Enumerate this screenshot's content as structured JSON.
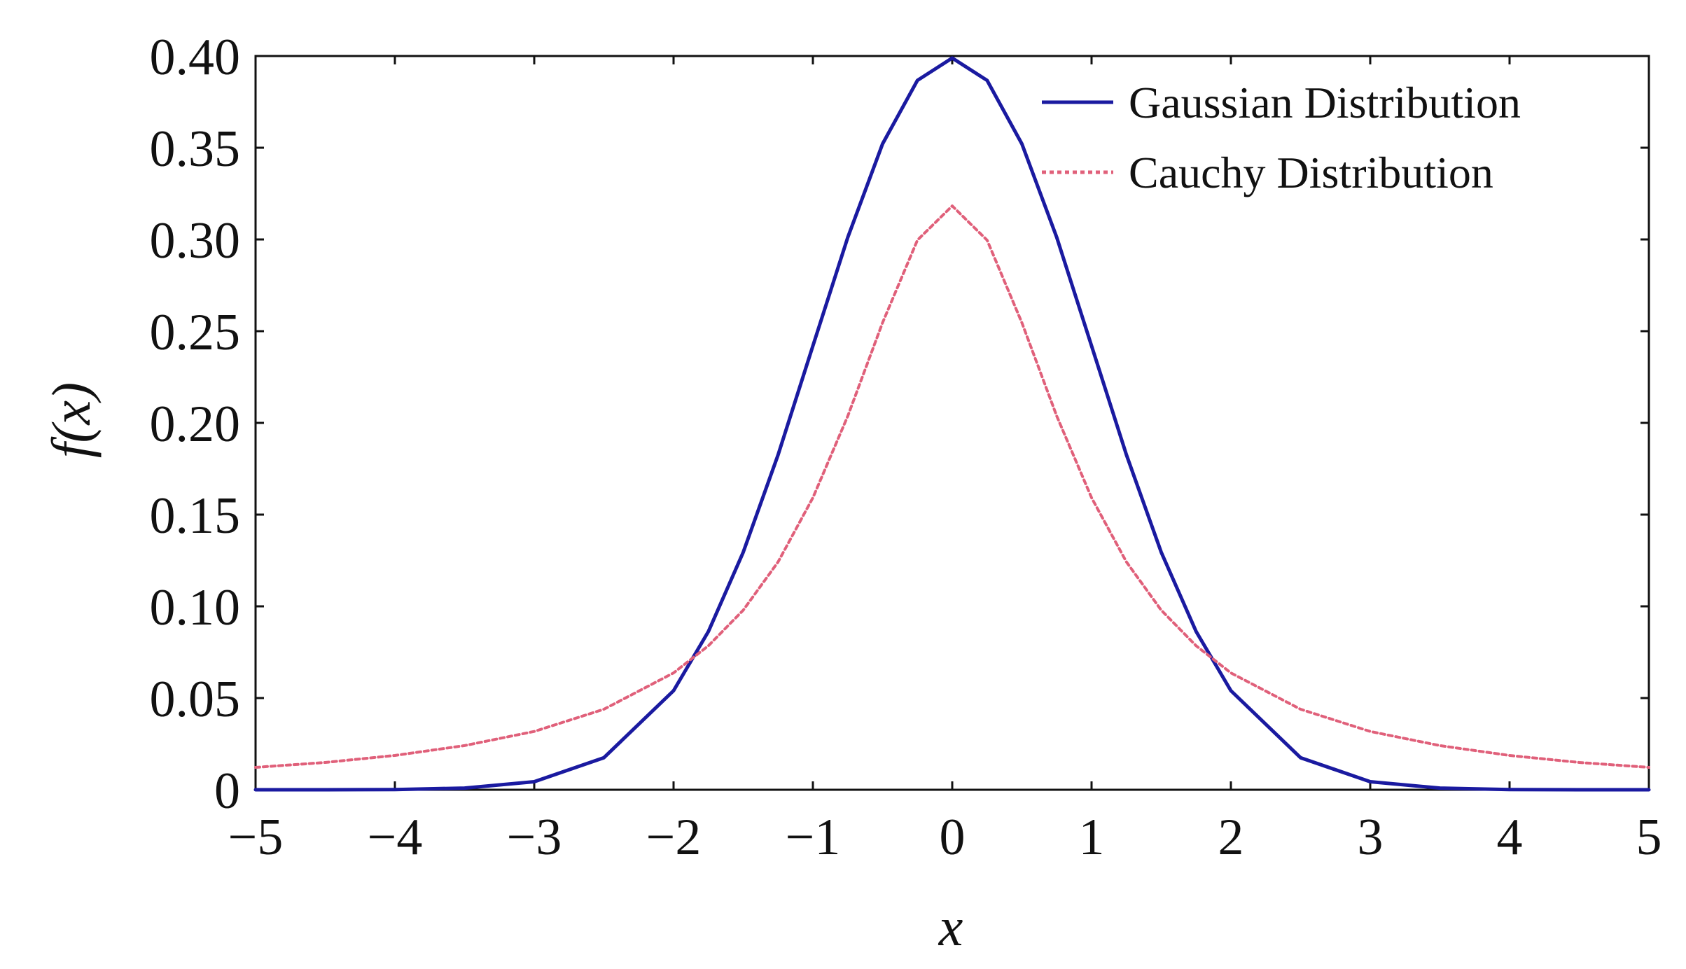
{
  "chart_data": {
    "type": "line",
    "title": "",
    "xlabel": "x",
    "ylabel": "f(x)",
    "xlim": [
      -5,
      5
    ],
    "ylim": [
      0,
      0.4
    ],
    "x_ticks": [
      -5,
      -4,
      -3,
      -2,
      -1,
      0,
      1,
      2,
      3,
      4,
      5
    ],
    "x_tick_labels": [
      "−5",
      "−4",
      "−3",
      "−2",
      "−1",
      "0",
      "1",
      "2",
      "3",
      "4",
      "5"
    ],
    "y_ticks": [
      0,
      0.05,
      0.1,
      0.15,
      0.2,
      0.25,
      0.3,
      0.35,
      0.4
    ],
    "y_tick_labels": [
      "0",
      "0.05",
      "0.10",
      "0.15",
      "0.20",
      "0.25",
      "0.30",
      "0.35",
      "0.40"
    ],
    "grid": false,
    "legend_position": "top-right",
    "x": [
      -5,
      -4.5,
      -4,
      -3.5,
      -3,
      -2.5,
      -2,
      -1.75,
      -1.5,
      -1.25,
      -1,
      -0.75,
      -0.5,
      -0.25,
      0,
      0.25,
      0.5,
      0.75,
      1,
      1.25,
      1.5,
      1.75,
      2,
      2.5,
      3,
      3.5,
      4,
      4.5,
      5
    ],
    "series": [
      {
        "name": "Gaussian Distribution",
        "color": "#1a1aa0",
        "style": "solid",
        "values": [
          0.0,
          0.0,
          0.0001,
          0.0009,
          0.0044,
          0.0175,
          0.054,
          0.0863,
          0.1295,
          0.1826,
          0.242,
          0.3011,
          0.3521,
          0.3867,
          0.3989,
          0.3867,
          0.3521,
          0.3011,
          0.242,
          0.1826,
          0.1295,
          0.0863,
          0.054,
          0.0175,
          0.0044,
          0.0009,
          0.0001,
          0.0,
          0.0
        ]
      },
      {
        "name": "Cauchy Distribution",
        "color": "#e0607a",
        "style": "dotted",
        "values": [
          0.0122,
          0.0149,
          0.0187,
          0.0241,
          0.0318,
          0.0439,
          0.0637,
          0.0785,
          0.0979,
          0.1242,
          0.1592,
          0.2037,
          0.2546,
          0.2996,
          0.3183,
          0.2996,
          0.2546,
          0.2037,
          0.1592,
          0.1242,
          0.0979,
          0.0785,
          0.0637,
          0.0439,
          0.0318,
          0.0241,
          0.0187,
          0.0149,
          0.0122
        ]
      }
    ]
  }
}
